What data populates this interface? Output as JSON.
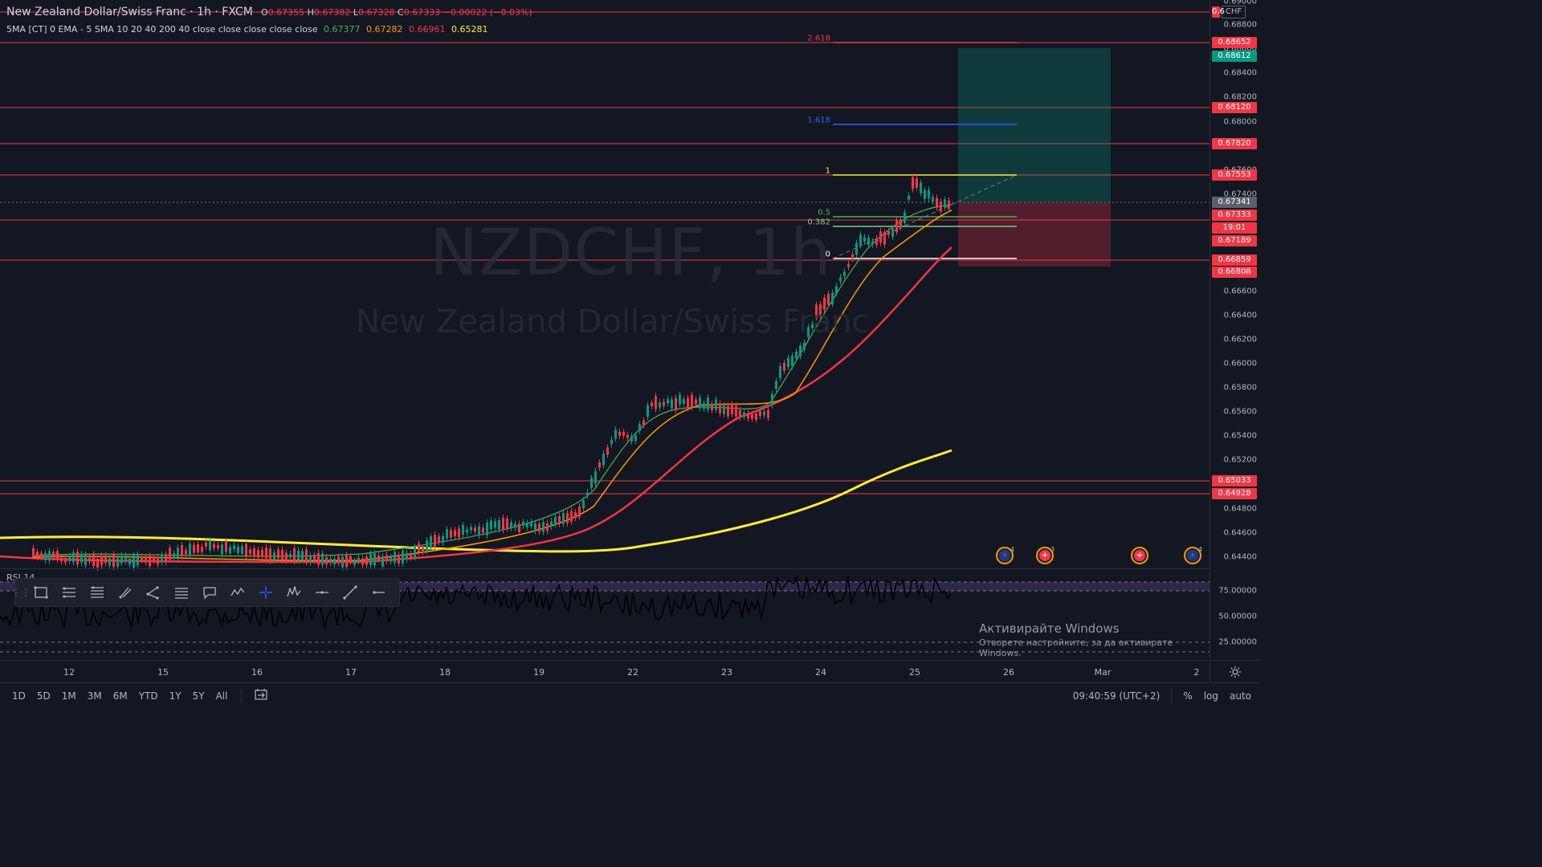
{
  "legend": {
    "title": "New Zealand Dollar/Swiss Franc · 1h · FXCM",
    "o_label": "O",
    "o": "0.67355",
    "h_label": "H",
    "h": "0.67382",
    "l_label": "L",
    "l": "0.67328",
    "c_label": "C",
    "c": "0.67333",
    "change": "−0.00022 (−0.03%)",
    "ma_text": "5MA [CT] 0 EMA - 5 SMA 10 20 40 200 40 close close close close close",
    "ma_values": [
      "0.67377",
      "0.67282",
      "0.66961",
      "0.65281"
    ],
    "ma_colors": [
      "#4caf50",
      "#ff9800",
      "#f23645",
      "#ffeb3b"
    ]
  },
  "watermark": {
    "symbol": "NZDCHF, 1h",
    "name": "New Zealand Dollar/Swiss Franc"
  },
  "currency": "CHF",
  "price_axis": {
    "ticks": [
      "0.68800",
      "0.68600",
      "0.68400",
      "0.68200",
      "0.68000",
      "0.67800",
      "0.67600",
      "0.67400",
      "0.66600",
      "0.66400",
      "0.66200",
      "0.66000",
      "0.65800",
      "0.65600",
      "0.65400",
      "0.65200",
      "0.64800",
      "0.64600",
      "0.64400"
    ],
    "top_cut": "0.69000",
    "tags": [
      {
        "value": "0.68652",
        "color": "#f23645"
      },
      {
        "value": "0.68612",
        "color": "#089981"
      },
      {
        "value": "0.68120",
        "color": "#f23645"
      },
      {
        "value": "0.67820",
        "color": "#f23645"
      },
      {
        "value": "0.67553",
        "color": "#f23645"
      },
      {
        "value": "0.67341",
        "color": "#5d606b"
      },
      {
        "value": "0.67333",
        "color": "#f23645"
      },
      {
        "value": "19:01",
        "color": "#f23645"
      },
      {
        "value": "0.67189",
        "color": "#f23645"
      },
      {
        "value": "0.66859",
        "color": "#f23645"
      },
      {
        "value": "0.66808",
        "color": "#f23645"
      },
      {
        "value": "0.65033",
        "color": "#f23645"
      },
      {
        "value": "0.64928",
        "color": "#f23645"
      },
      {
        "value": "0.6",
        "color": "#f23645"
      }
    ]
  },
  "fib": [
    {
      "label": "2.618",
      "color": "#f23645"
    },
    {
      "label": "1.618",
      "color": "#2962ff"
    },
    {
      "label": "1",
      "color": "#ffeb3b"
    },
    {
      "label": "0.5",
      "color": "#4caf50"
    },
    {
      "label": "0.382",
      "color": "#81c784"
    },
    {
      "label": "0",
      "color": "#ffffff"
    }
  ],
  "rsi": {
    "label": "RSI 14",
    "levels": [
      "75.00000",
      "50.00000",
      "25.00000"
    ]
  },
  "events": [
    {
      "icon": "nz-flag-icon",
      "count": "4"
    },
    {
      "icon": "ch-flag-icon",
      "count": "3"
    },
    {
      "icon": "ch-flag-icon",
      "count": ""
    },
    {
      "icon": "nz-flag-icon",
      "count": "4"
    }
  ],
  "time_axis": [
    "12",
    "15",
    "16",
    "17",
    "18",
    "19",
    "22",
    "23",
    "24",
    "25",
    "26",
    "Mar",
    "2"
  ],
  "ranges": [
    "1D",
    "5D",
    "1M",
    "3M",
    "6M",
    "YTD",
    "1Y",
    "5Y",
    "All"
  ],
  "clock": "09:40:59 (UTC+2)",
  "scale_buttons": [
    "%",
    "log",
    "auto"
  ],
  "windows_notice": {
    "title": "Активирайте Windows",
    "subtitle": "Отворете настройките, за да активирате Windows."
  },
  "toolbar_tools": [
    "drag-grip-icon",
    "rectangle-icon",
    "parallel-channel-icon",
    "fib-retracement-icon",
    "brush-icon",
    "path-icon",
    "horizontal-lines-icon",
    "callout-icon",
    "xabcd-pattern-icon",
    "crosshair-icon",
    "elliott-wave-icon",
    "horizontal-line-icon",
    "trend-line-icon",
    "horizontal-ray-icon"
  ]
}
